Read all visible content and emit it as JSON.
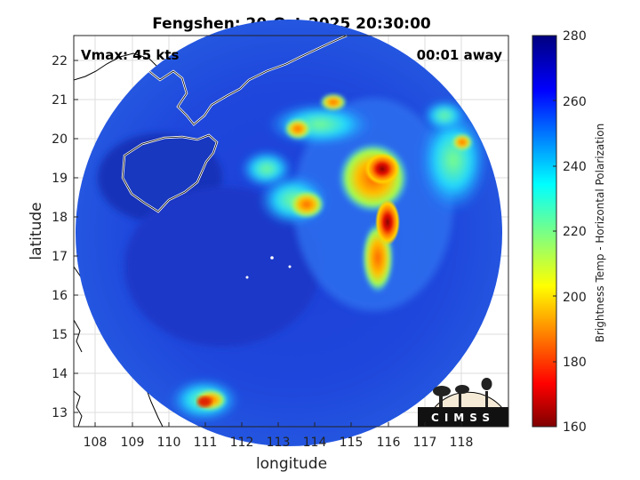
{
  "title": "Fengshen: 20-Oct-2025 20:30:00",
  "vmax_label": "Vmax: 45 kts",
  "time_label": "00:01 away",
  "xlabel": "longitude",
  "ylabel": "latitude",
  "colorbar_label": "Brightness Temp - Horizontal Polarization",
  "logo_text": "CIMSS",
  "x_ticks": [
    "108",
    "109",
    "110",
    "111",
    "112",
    "113",
    "114",
    "115",
    "116",
    "117",
    "118"
  ],
  "y_ticks": [
    "13",
    "14",
    "15",
    "16",
    "17",
    "18",
    "19",
    "20",
    "21",
    "22"
  ],
  "colorbar_ticks": [
    "160",
    "180",
    "200",
    "220",
    "240",
    "260",
    "280"
  ],
  "colors": {
    "ocean": "#1f44d8",
    "coast": "#ffffff",
    "land_outline": "#000000"
  }
}
